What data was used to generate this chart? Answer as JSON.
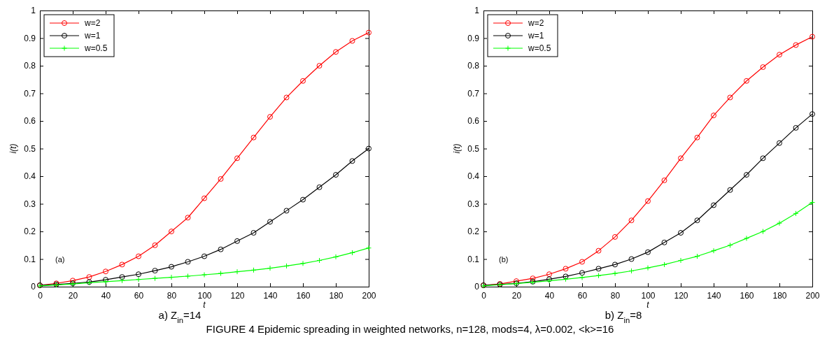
{
  "chart_data": [
    {
      "type": "line",
      "xlabel": "t",
      "ylabel": "i(t)",
      "xlim": [
        0,
        200
      ],
      "ylim": [
        0,
        1
      ],
      "xticks": [
        0,
        20,
        40,
        60,
        80,
        100,
        120,
        140,
        160,
        180,
        200
      ],
      "yticks": [
        0,
        0.1,
        0.2,
        0.3,
        0.4,
        0.5,
        0.6,
        0.7,
        0.8,
        0.9,
        1
      ],
      "grid": false,
      "legend": "top left",
      "line_style": "solid",
      "x": [
        0,
        10,
        20,
        30,
        40,
        50,
        60,
        70,
        80,
        90,
        100,
        110,
        120,
        130,
        140,
        150,
        160,
        170,
        180,
        190,
        200
      ],
      "annotations": [
        "(a)",
        "a) Z$_{in}$=14",
        "FIGURE 4 Epidemic spreading in weighted networks, n=128, mods=4, λ=0.002, <k>=16"
      ],
      "series": [
        {
          "name": "w=2",
          "color": "#ff0000",
          "marker": "circle",
          "values": [
            0.005,
            0.012,
            0.022,
            0.035,
            0.055,
            0.08,
            0.11,
            0.15,
            0.2,
            0.25,
            0.32,
            0.39,
            0.465,
            0.54,
            0.615,
            0.685,
            0.745,
            0.8,
            0.85,
            0.89,
            0.92
          ]
        },
        {
          "name": "w=1",
          "color": "#000000",
          "marker": "circle",
          "values": [
            0.005,
            0.008,
            0.012,
            0.017,
            0.025,
            0.035,
            0.045,
            0.058,
            0.072,
            0.09,
            0.11,
            0.135,
            0.165,
            0.195,
            0.235,
            0.275,
            0.315,
            0.36,
            0.405,
            0.455,
            0.5
          ]
        },
        {
          "name": "w=0.5",
          "color": "#00ff00",
          "marker": "cross",
          "values": [
            0.003,
            0.006,
            0.01,
            0.014,
            0.018,
            0.022,
            0.026,
            0.03,
            0.034,
            0.038,
            0.043,
            0.048,
            0.054,
            0.06,
            0.067,
            0.075,
            0.084,
            0.095,
            0.108,
            0.123,
            0.14
          ]
        }
      ]
    },
    {
      "type": "line",
      "xlabel": "t",
      "ylabel": "i(t)",
      "xlim": [
        0,
        200
      ],
      "ylim": [
        0,
        1
      ],
      "xticks": [
        0,
        20,
        40,
        60,
        80,
        100,
        120,
        140,
        160,
        180,
        200
      ],
      "yticks": [
        0,
        0.1,
        0.2,
        0.3,
        0.4,
        0.5,
        0.6,
        0.7,
        0.8,
        0.9,
        1
      ],
      "grid": false,
      "legend": "top left",
      "line_style": "solid",
      "x": [
        0,
        10,
        20,
        30,
        40,
        50,
        60,
        70,
        80,
        90,
        100,
        110,
        120,
        130,
        140,
        150,
        160,
        170,
        180,
        190,
        200
      ],
      "annotations": [
        "(b)",
        "b) Z$_{in}$=8"
      ],
      "series": [
        {
          "name": "w=2",
          "color": "#ff0000",
          "marker": "circle",
          "values": [
            0.005,
            0.01,
            0.02,
            0.03,
            0.045,
            0.065,
            0.09,
            0.13,
            0.18,
            0.24,
            0.31,
            0.385,
            0.465,
            0.54,
            0.62,
            0.685,
            0.745,
            0.795,
            0.84,
            0.875,
            0.905
          ]
        },
        {
          "name": "w=1",
          "color": "#000000",
          "marker": "circle",
          "values": [
            0.005,
            0.008,
            0.012,
            0.018,
            0.027,
            0.037,
            0.05,
            0.065,
            0.08,
            0.1,
            0.125,
            0.16,
            0.195,
            0.24,
            0.295,
            0.35,
            0.405,
            0.465,
            0.52,
            0.575,
            0.625
          ]
        },
        {
          "name": "w=0.5",
          "color": "#00ff00",
          "marker": "cross",
          "values": [
            0.003,
            0.007,
            0.011,
            0.016,
            0.021,
            0.027,
            0.033,
            0.04,
            0.048,
            0.057,
            0.068,
            0.08,
            0.095,
            0.11,
            0.13,
            0.15,
            0.175,
            0.2,
            0.23,
            0.265,
            0.305
          ]
        }
      ]
    }
  ]
}
